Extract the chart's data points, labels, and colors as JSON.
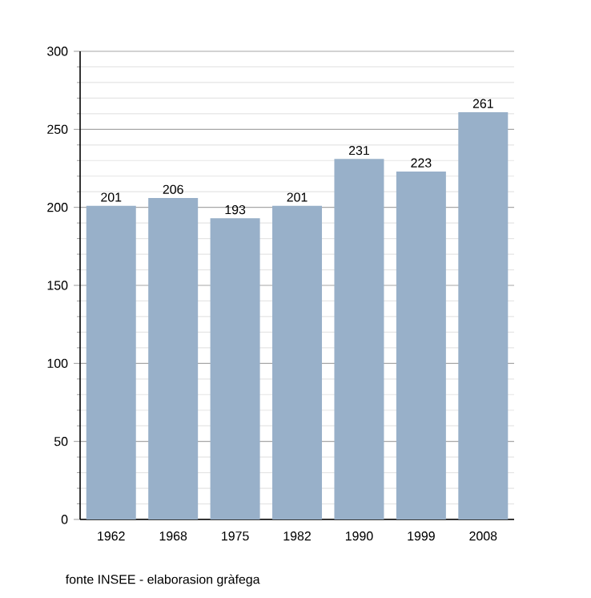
{
  "chart_data": {
    "type": "bar",
    "categories": [
      "1962",
      "1968",
      "1975",
      "1982",
      "1990",
      "1999",
      "2008"
    ],
    "values": [
      201,
      206,
      193,
      201,
      231,
      223,
      261
    ],
    "color": "#98b0c9",
    "ylim": [
      0,
      300
    ],
    "yticks": [
      0,
      50,
      100,
      150,
      200,
      250,
      300
    ],
    "grid": "y",
    "data_labels": true,
    "annotations": [
      "fonte INSEE - elaborasion gràfega"
    ]
  }
}
